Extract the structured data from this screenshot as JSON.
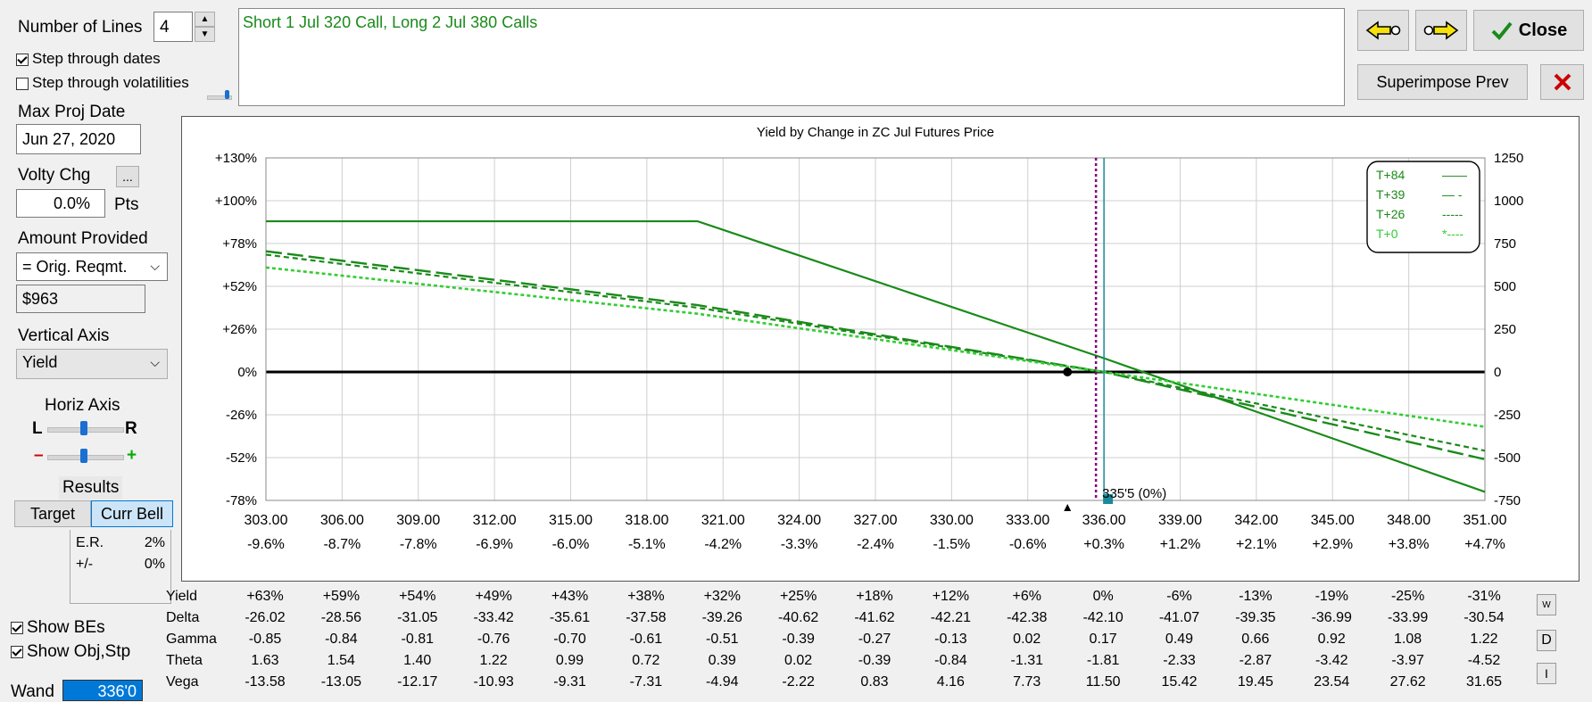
{
  "controls": {
    "number_of_lines_label": "Number of Lines",
    "number_of_lines_value": "4",
    "step_dates_label": "Step through dates",
    "step_dates_checked": true,
    "step_vol_label": "Step through volatilities",
    "step_vol_checked": false,
    "max_proj_date_label": "Max Proj Date",
    "max_proj_date_value": "Jun 27, 2020",
    "volty_chg_label": "Volty Chg",
    "volty_chg_button": "...",
    "volty_chg_value": "0.0%",
    "volty_chg_unit": "Pts",
    "amount_provided_label": "Amount Provided",
    "amount_provided_selected": "= Orig. Reqmt.",
    "amount_value": "$963",
    "vertical_axis_label": "Vertical Axis",
    "vertical_axis_selected": "Yield",
    "horiz_axis_label": "Horiz Axis",
    "horiz_l": "L",
    "horiz_r": "R",
    "horiz_minus": "–",
    "horiz_plus": "+",
    "results_label": "Results",
    "target_button": "Target",
    "curr_bell_button": "Curr Bell",
    "er_label": "E.R.",
    "er_value": "2%",
    "pm_label": "+/-",
    "pm_value": "0%",
    "show_bes_label": "Show BEs",
    "show_bes_checked": true,
    "show_obj_label": "Show Obj,Stp",
    "show_obj_checked": true,
    "wand_label": "Wand",
    "wand_value": "336'0"
  },
  "description": "Short 1 Jul 320 Call, Long 2 Jul 380 Calls",
  "toolbar": {
    "back_icon": "arrow-left-icon",
    "forward_icon": "arrow-right-icon",
    "close_label": "Close",
    "superimpose_label": "Superimpose Prev",
    "delete_icon": "red-x-icon"
  },
  "colors": {
    "green_dark": "#1a8a1a",
    "green_light": "#33cc33",
    "marker_purple": "#800080",
    "marker_teal": "#1a8a9a",
    "accent_blue": "#0078d7"
  },
  "chart_data": {
    "type": "line",
    "title": "Yield by Change in ZC Jul Futures Price",
    "x_ticks": [
      "303.00",
      "306.00",
      "309.00",
      "312.00",
      "315.00",
      "318.00",
      "321.00",
      "324.00",
      "327.00",
      "330.00",
      "333.00",
      "336.00",
      "339.00",
      "342.00",
      "345.00",
      "348.00",
      "351.00"
    ],
    "x_pct_ticks": [
      "-9.6%",
      "-8.7%",
      "-7.8%",
      "-6.9%",
      "-6.0%",
      "-5.1%",
      "-4.2%",
      "-3.3%",
      "-2.4%",
      "-1.5%",
      "-0.6%",
      "+0.3%",
      "+1.2%",
      "+2.1%",
      "+2.9%",
      "+3.8%",
      "+4.7%"
    ],
    "xlim": [
      303,
      351
    ],
    "y_left_ticks": [
      "+130%",
      "+100%",
      "+78%",
      "+52%",
      "+26%",
      "0%",
      "-26%",
      "-52%",
      "-78%"
    ],
    "y_right_ticks": [
      "1250",
      "1000",
      "750",
      "500",
      "250",
      "0",
      "-250",
      "-500",
      "-750"
    ],
    "ylim_right": [
      -750,
      1250
    ],
    "grid": true,
    "legend_position": "top-right",
    "legend": [
      {
        "name": "T+84",
        "style": "——"
      },
      {
        "name": "T+39",
        "style": "— -"
      },
      {
        "name": "T+26",
        "style": "-----"
      },
      {
        "name": "T+0",
        "style": "*----"
      }
    ],
    "series": [
      {
        "name": "T+84",
        "x": [
          303,
          320,
          336,
          351
        ],
        "y": [
          880,
          880,
          80,
          -700
        ]
      },
      {
        "name": "T+39",
        "x": [
          303,
          320,
          336,
          351
        ],
        "y": [
          705,
          390,
          0,
          -510
        ]
      },
      {
        "name": "T+26",
        "x": [
          303,
          320,
          336,
          351
        ],
        "y": [
          685,
          375,
          0,
          -460
        ]
      },
      {
        "name": "T+0",
        "x": [
          303,
          320,
          336,
          351
        ],
        "y": [
          610,
          340,
          0,
          -320
        ]
      }
    ],
    "current_price": 336,
    "marker_label": "335'5 (0%)",
    "breakeven_x": 335.3
  },
  "table": {
    "rows": [
      {
        "label": "Yield",
        "values": [
          "+63%",
          "+59%",
          "+54%",
          "+49%",
          "+43%",
          "+38%",
          "+32%",
          "+25%",
          "+18%",
          "+12%",
          "+6%",
          "0%",
          "-6%",
          "-13%",
          "-19%",
          "-25%",
          "-31%"
        ]
      },
      {
        "label": "Delta",
        "values": [
          "-26.02",
          "-28.56",
          "-31.05",
          "-33.42",
          "-35.61",
          "-37.58",
          "-39.26",
          "-40.62",
          "-41.62",
          "-42.21",
          "-42.38",
          "-42.10",
          "-41.07",
          "-39.35",
          "-36.99",
          "-33.99",
          "-30.54"
        ]
      },
      {
        "label": "Gamma",
        "values": [
          "-0.85",
          "-0.84",
          "-0.81",
          "-0.76",
          "-0.70",
          "-0.61",
          "-0.51",
          "-0.39",
          "-0.27",
          "-0.13",
          "0.02",
          "0.17",
          "0.49",
          "0.66",
          "0.92",
          "1.08",
          "1.22"
        ]
      },
      {
        "label": "Theta",
        "values": [
          "1.63",
          "1.54",
          "1.40",
          "1.22",
          "0.99",
          "0.72",
          "0.39",
          "0.02",
          "-0.39",
          "-0.84",
          "-1.31",
          "-1.81",
          "-2.33",
          "-2.87",
          "-3.42",
          "-3.97",
          "-4.52"
        ]
      },
      {
        "label": "Vega",
        "values": [
          "-13.58",
          "-13.05",
          "-12.17",
          "-10.93",
          "-9.31",
          "-7.31",
          "-4.94",
          "-2.22",
          "0.83",
          "4.16",
          "7.73",
          "11.50",
          "15.42",
          "19.45",
          "23.54",
          "27.62",
          "31.65"
        ]
      }
    ],
    "side_buttons": [
      "W",
      "D",
      "I"
    ]
  }
}
